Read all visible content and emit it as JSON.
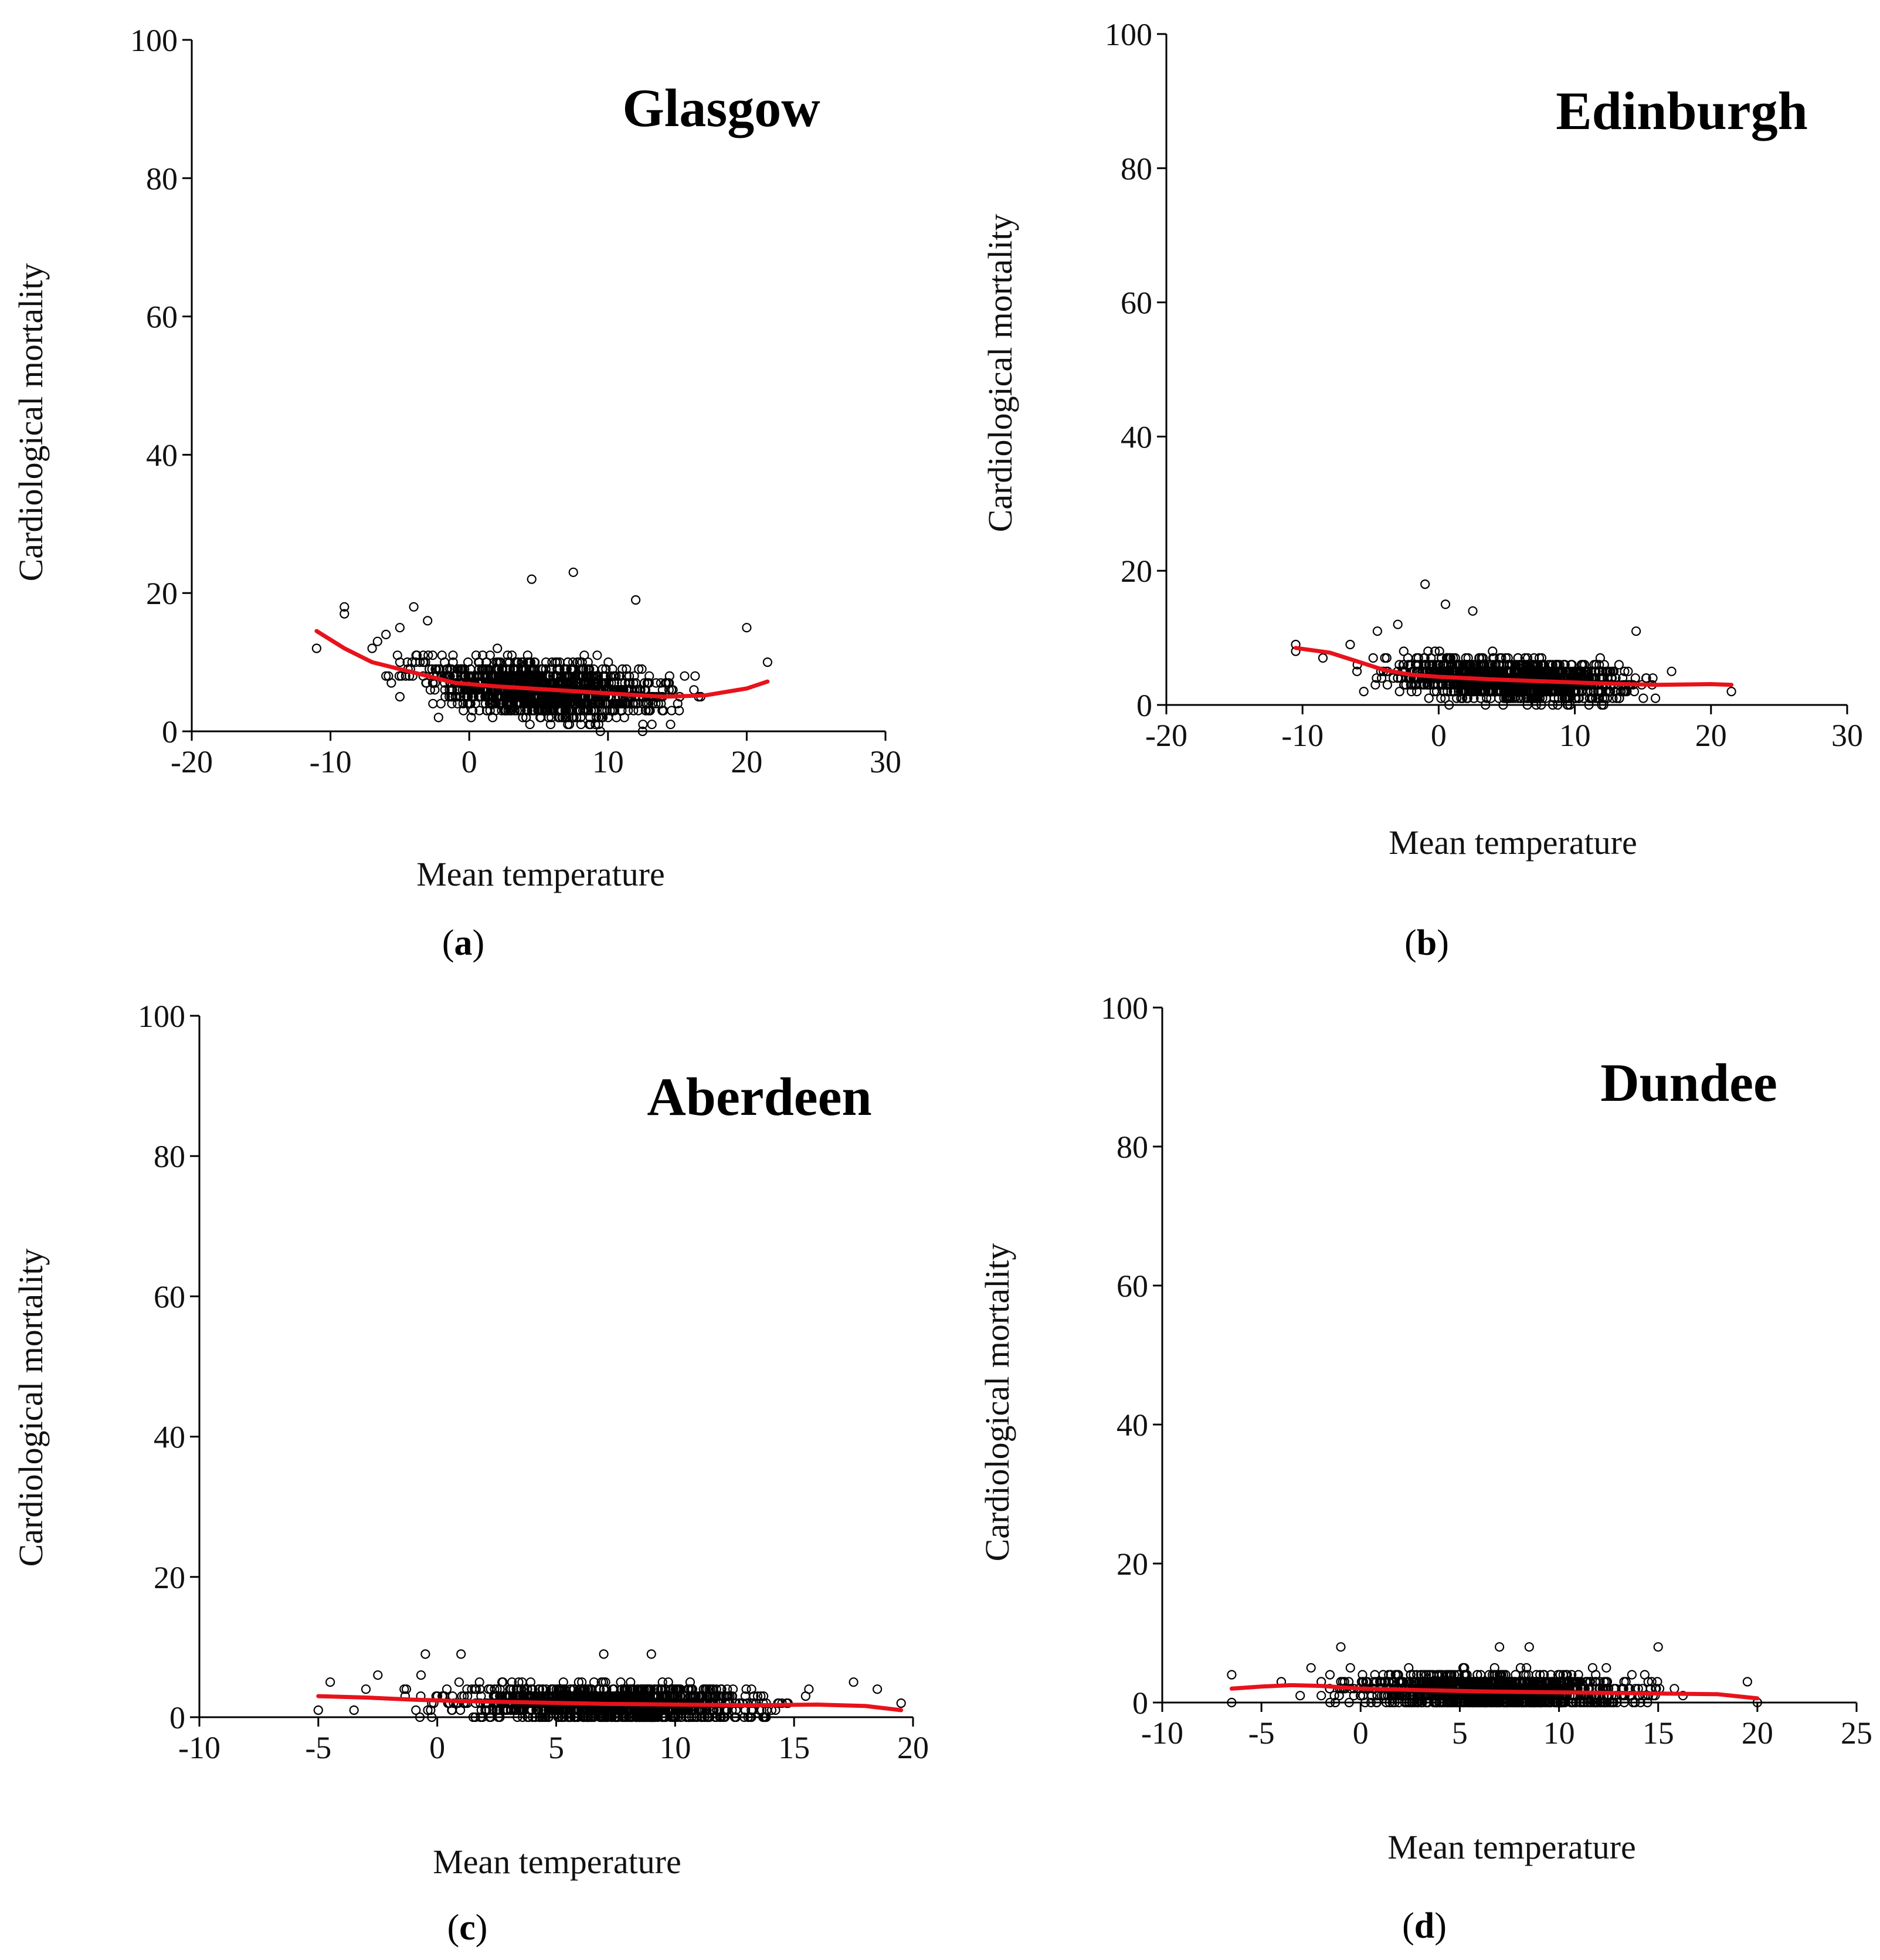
{
  "colors": {
    "points": "#000000",
    "smooth": "#e8121b",
    "axis": "#000000"
  },
  "chart_data": [
    {
      "type": "scatter",
      "panel_label": "a",
      "title": "Glasgow",
      "xlabel": "Mean temperature",
      "ylabel": "Cardiological mortality",
      "xlim": [
        -20,
        30
      ],
      "ylim": [
        0,
        100
      ],
      "xticks": [
        -20,
        -10,
        0,
        10,
        20,
        30
      ],
      "yticks": [
        0,
        20,
        40,
        60,
        80,
        100
      ],
      "xtick_labels": [
        "-20",
        "-10",
        "0",
        "10",
        "20",
        "30"
      ],
      "ytick_labels": [
        "0",
        "20",
        "40",
        "60",
        "80",
        "100"
      ],
      "data_range": {
        "x": [
          -11,
          21.5
        ],
        "y": [
          0,
          23
        ],
        "typical_y": [
          2,
          13
        ]
      },
      "outliers": [
        [
          -11,
          12
        ],
        [
          -9,
          18
        ],
        [
          -9,
          17
        ],
        [
          -7,
          12
        ],
        [
          -6,
          14
        ],
        [
          -6,
          8
        ],
        [
          -5,
          5
        ],
        [
          -5,
          15
        ],
        [
          -4,
          18
        ],
        [
          -3,
          16
        ],
        [
          7.5,
          23
        ],
        [
          4.5,
          22
        ],
        [
          12,
          19
        ],
        [
          20,
          15
        ],
        [
          21.5,
          10
        ]
      ],
      "smooth": {
        "x": [
          -11,
          -9,
          -7,
          -5,
          -3,
          -1,
          2,
          6,
          10,
          14,
          17,
          20,
          21.5
        ],
        "y": [
          14.5,
          12,
          10,
          9,
          8,
          7,
          6.5,
          6,
          5.5,
          5,
          5.2,
          6.2,
          7.2
        ]
      }
    },
    {
      "type": "scatter",
      "panel_label": "b",
      "title": "Edinburgh",
      "xlabel": "Mean temperature",
      "ylabel": "Cardiological mortality",
      "xlim": [
        -20,
        30
      ],
      "ylim": [
        0,
        100
      ],
      "xticks": [
        -20,
        -10,
        0,
        10,
        20,
        30
      ],
      "yticks": [
        0,
        20,
        40,
        60,
        80,
        100
      ],
      "xtick_labels": [
        "-20",
        "-10",
        "0",
        "10",
        "20",
        "30"
      ],
      "ytick_labels": [
        "0",
        "20",
        "40",
        "60",
        "80",
        "100"
      ],
      "data_range": {
        "x": [
          -10.5,
          21.5
        ],
        "y": [
          0,
          18
        ],
        "typical_y": [
          1,
          9
        ]
      },
      "outliers": [
        [
          -10.5,
          9
        ],
        [
          -10.5,
          8
        ],
        [
          -8.5,
          7
        ],
        [
          -6.5,
          9
        ],
        [
          -6,
          5
        ],
        [
          -5.5,
          2
        ],
        [
          -4.5,
          11
        ],
        [
          -3,
          12
        ],
        [
          -1,
          18
        ],
        [
          0.5,
          15
        ],
        [
          2.5,
          14
        ],
        [
          14.5,
          11
        ],
        [
          21.5,
          2
        ]
      ],
      "smooth": {
        "x": [
          -10.5,
          -8,
          -6,
          -4,
          -2,
          0,
          4,
          8,
          12,
          16,
          20,
          21.5
        ],
        "y": [
          8.5,
          7.8,
          6.5,
          5.2,
          4.5,
          4.2,
          3.8,
          3.5,
          3.2,
          3.0,
          3.1,
          3.0
        ]
      }
    },
    {
      "type": "scatter",
      "panel_label": "c",
      "title": "Aberdeen",
      "xlabel": "Mean temperature",
      "ylabel": "Cardiological mortality",
      "xlim": [
        -10,
        20
      ],
      "ylim": [
        0,
        100
      ],
      "xticks": [
        -10,
        -5,
        0,
        5,
        10,
        15,
        20
      ],
      "yticks": [
        0,
        20,
        40,
        60,
        80,
        100
      ],
      "xtick_labels": [
        "-10",
        "-5",
        "0",
        "5",
        "10",
        "15",
        "20"
      ],
      "ytick_labels": [
        "0",
        "20",
        "40",
        "60",
        "80",
        "100"
      ],
      "data_range": {
        "x": [
          -5,
          19.5
        ],
        "y": [
          0,
          9
        ],
        "typical_y": [
          0,
          7
        ]
      },
      "outliers": [
        [
          -5,
          1
        ],
        [
          -4.5,
          5
        ],
        [
          -3.5,
          1
        ],
        [
          -3,
          4
        ],
        [
          -2.5,
          6
        ],
        [
          -0.5,
          9
        ],
        [
          1,
          9
        ],
        [
          7,
          9
        ],
        [
          9,
          9
        ],
        [
          17.5,
          5
        ],
        [
          18.5,
          4
        ],
        [
          19.5,
          2
        ]
      ],
      "smooth": {
        "x": [
          -5,
          -3,
          -1,
          1,
          4,
          7,
          10,
          13,
          16,
          18,
          19.5
        ],
        "y": [
          3.0,
          2.8,
          2.5,
          2.3,
          2.1,
          1.9,
          1.8,
          1.7,
          1.8,
          1.6,
          1.0
        ]
      }
    },
    {
      "type": "scatter",
      "panel_label": "d",
      "title": "Dundee",
      "xlabel": "Mean temperature",
      "ylabel": "Cardiological mortality",
      "xlim": [
        -10,
        25
      ],
      "ylim": [
        0,
        100
      ],
      "xticks": [
        -10,
        -5,
        0,
        5,
        10,
        15,
        20,
        25
      ],
      "yticks": [
        0,
        20,
        40,
        60,
        80,
        100
      ],
      "xtick_labels": [
        "-10",
        "-5",
        "0",
        "5",
        "10",
        "15",
        "20",
        "25"
      ],
      "ytick_labels": [
        "0",
        "20",
        "40",
        "60",
        "80",
        "100"
      ],
      "data_range": {
        "x": [
          -6.5,
          20
        ],
        "y": [
          0,
          8
        ],
        "typical_y": [
          0,
          7
        ]
      },
      "outliers": [
        [
          -6.5,
          4
        ],
        [
          -6.5,
          0
        ],
        [
          -4,
          3
        ],
        [
          -2.5,
          5
        ],
        [
          -1,
          8
        ],
        [
          7,
          8
        ],
        [
          8.5,
          8
        ],
        [
          15,
          8
        ],
        [
          19.5,
          3
        ],
        [
          20,
          0
        ]
      ],
      "smooth": {
        "x": [
          -6.5,
          -5,
          -3.5,
          -2,
          0,
          3,
          6,
          9,
          12,
          15,
          18,
          20
        ],
        "y": [
          2.0,
          2.3,
          2.5,
          2.4,
          2.0,
          1.8,
          1.6,
          1.5,
          1.4,
          1.3,
          1.2,
          0.6
        ]
      }
    }
  ]
}
